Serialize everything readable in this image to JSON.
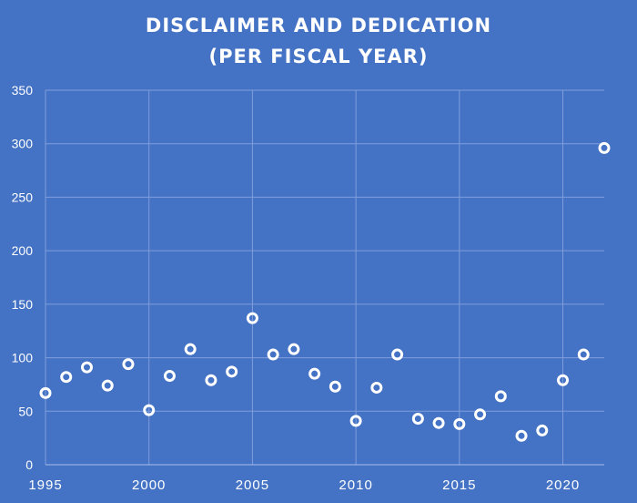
{
  "chart_data": {
    "type": "scatter",
    "title_lines": [
      "DISCLAIMER AND DEDICATION",
      "(PER FISCAL YEAR)"
    ],
    "xlabel": "",
    "ylabel": "",
    "xlim": [
      1995,
      2022
    ],
    "ylim": [
      0,
      350
    ],
    "x_ticks": [
      1995,
      2000,
      2005,
      2010,
      2015,
      2020
    ],
    "y_ticks": [
      0,
      50,
      100,
      150,
      200,
      250,
      300,
      350
    ],
    "grid": true,
    "legend": "none",
    "colors": {
      "background": "#4472c4",
      "marker": "#ffffff",
      "grid": "#7f9edb"
    },
    "x": [
      1995,
      1996,
      1997,
      1998,
      1999,
      2000,
      2001,
      2002,
      2003,
      2004,
      2005,
      2006,
      2007,
      2008,
      2009,
      2010,
      2011,
      2012,
      2013,
      2014,
      2015,
      2016,
      2017,
      2018,
      2019,
      2020,
      2021,
      2022
    ],
    "y": [
      67,
      82,
      91,
      74,
      94,
      51,
      83,
      108,
      79,
      87,
      137,
      103,
      108,
      85,
      73,
      41,
      72,
      103,
      43,
      39,
      38,
      47,
      64,
      27,
      32,
      79,
      103,
      296
    ]
  }
}
